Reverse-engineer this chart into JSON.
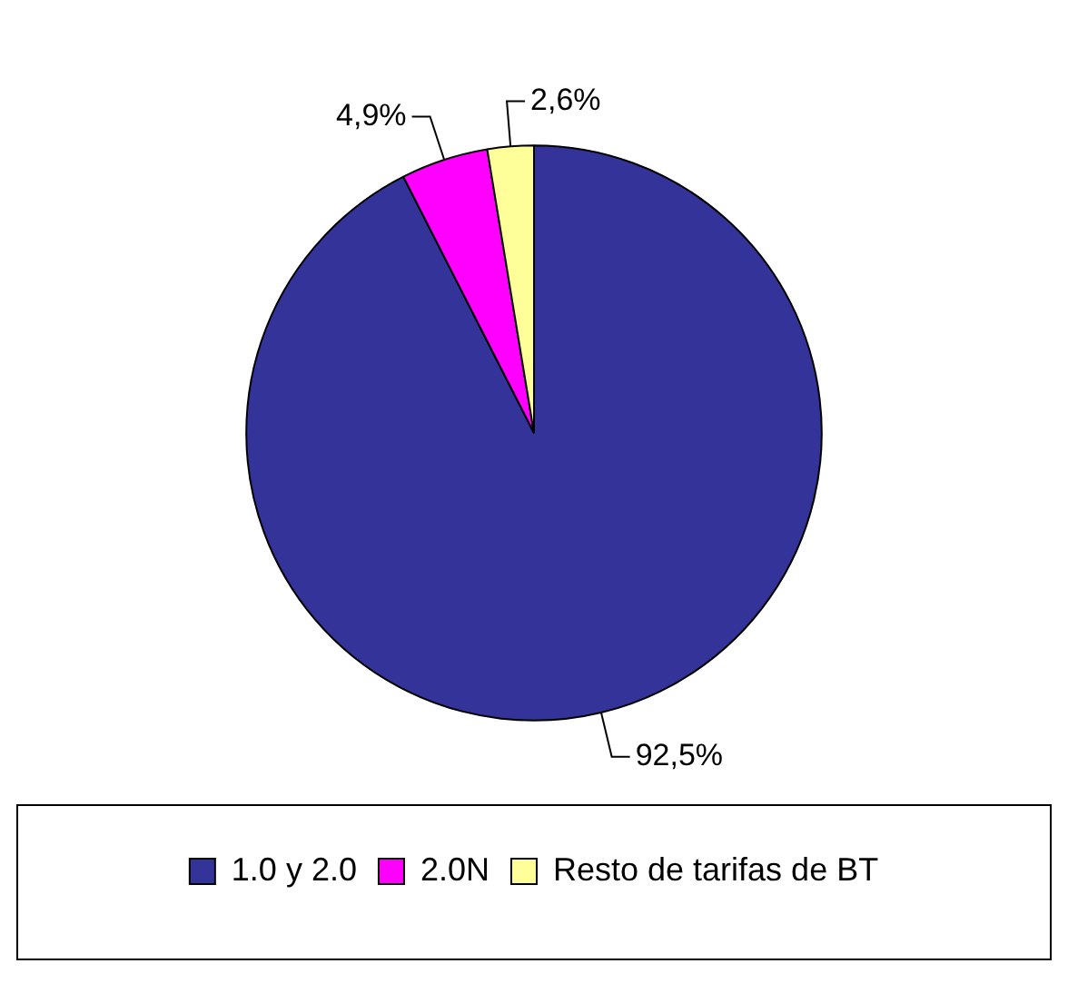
{
  "chart_data": {
    "type": "pie",
    "categories": [
      "1.0 y 2.0",
      "2.0N",
      "Resto de tarifas de BT"
    ],
    "values": [
      92.5,
      4.9,
      2.6
    ],
    "colors": [
      "#333399",
      "#ff00ff",
      "#ffff99"
    ],
    "value_labels": [
      "92,5%",
      "4,9%",
      "2,6%"
    ],
    "legend": "bottom"
  }
}
